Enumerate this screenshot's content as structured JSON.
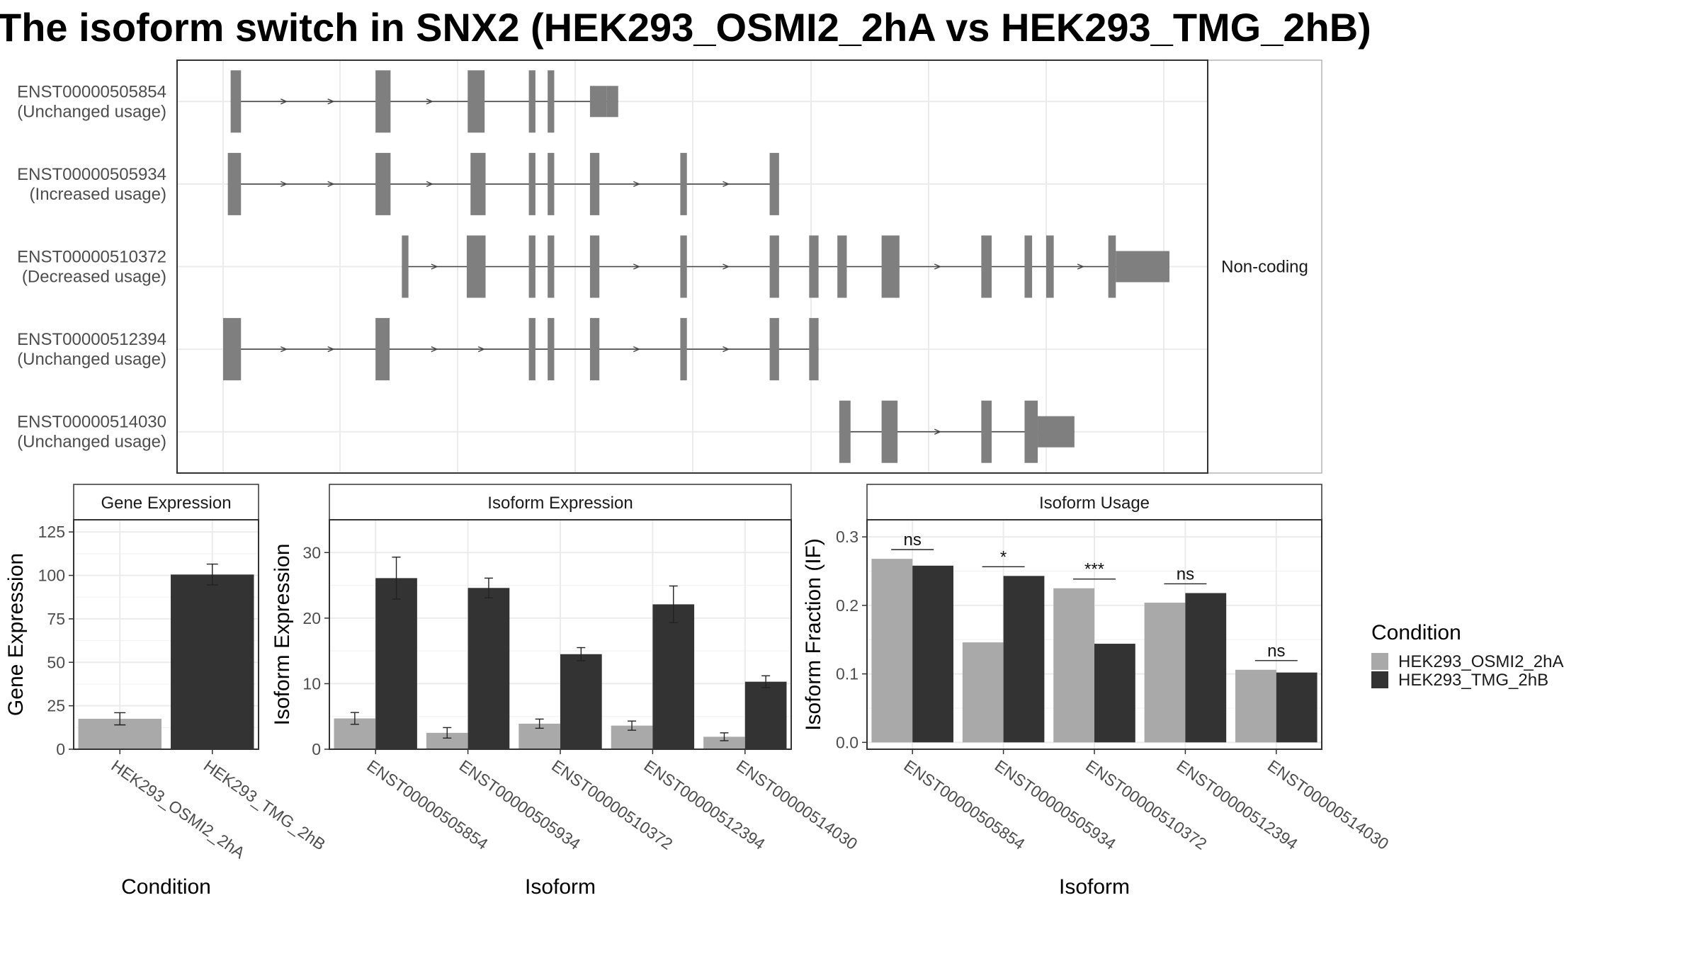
{
  "title": "The isoform switch in SNX2 (HEK293_OSMI2_2hA vs HEK293_TMG_2hB)",
  "colors": {
    "exon": "#7f7f7f",
    "cond_a": "#a9a9a9",
    "cond_b": "#333333",
    "grid": "#ebebeb",
    "panel_border": "#333333",
    "strip_bg": "#ffffff",
    "text": "#222222"
  },
  "structure": {
    "coordinate_range": [
      0,
      1000
    ],
    "tracks": [
      {
        "id": "ENST00000505854",
        "status": "(Unchanged usage)",
        "coding": true,
        "exons": [
          [
            8,
            19
          ],
          [
            162,
            178
          ],
          [
            260,
            278
          ],
          [
            325,
            332
          ],
          [
            345,
            352
          ],
          [
            390,
            408,
            "utr"
          ],
          [
            408,
            420,
            "utr"
          ]
        ],
        "arrows": [
          65,
          115,
          220
        ]
      },
      {
        "id": "ENST00000505934",
        "status": "(Increased usage)",
        "coding": true,
        "exons": [
          [
            5,
            19
          ],
          [
            162,
            178
          ],
          [
            263,
            279
          ],
          [
            325,
            332
          ],
          [
            345,
            352
          ],
          [
            390,
            400
          ],
          [
            486,
            493
          ],
          [
            581,
            591
          ]
        ],
        "arrows": [
          65,
          115,
          220,
          440,
          535
        ]
      },
      {
        "id": "ENST00000510372",
        "status": "(Decreased usage)",
        "coding": true,
        "exons": [
          [
            190,
            197
          ],
          [
            259,
            279
          ],
          [
            325,
            332
          ],
          [
            345,
            352
          ],
          [
            390,
            400
          ],
          [
            486,
            493
          ],
          [
            581,
            591
          ],
          [
            623,
            633
          ],
          [
            653,
            663
          ],
          [
            700,
            719
          ],
          [
            806,
            817
          ],
          [
            852,
            860
          ],
          [
            875,
            883
          ],
          [
            941,
            949
          ],
          [
            949,
            1006,
            "utr"
          ]
        ],
        "arrows": [
          225,
          440,
          535,
          760,
          912
        ],
        "side_label": "Non-coding"
      },
      {
        "id": "ENST00000512394",
        "status": "(Unchanged usage)",
        "coding": true,
        "exons": [
          [
            0,
            19
          ],
          [
            162,
            177
          ],
          [
            325,
            332
          ],
          [
            345,
            352
          ],
          [
            390,
            400
          ],
          [
            486,
            493
          ],
          [
            581,
            591
          ],
          [
            623,
            633
          ]
        ],
        "arrows": [
          65,
          115,
          225,
          275,
          440,
          535
        ]
      },
      {
        "id": "ENST00000514030",
        "status": "(Unchanged usage)",
        "coding": true,
        "exons": [
          [
            655,
            667
          ],
          [
            700,
            717
          ],
          [
            806,
            817
          ],
          [
            852,
            866
          ],
          [
            866,
            905,
            "utr"
          ]
        ],
        "arrows": [
          760
        ]
      }
    ]
  },
  "chart_data": [
    {
      "type": "bar",
      "title": "Gene Expression",
      "xlabel": "Condition",
      "ylabel": "Gene Expression",
      "ylim": [
        0,
        132
      ],
      "yticks": [
        0,
        25,
        50,
        75,
        100,
        125
      ],
      "categories": [
        "HEK293_OSMI2_2hA",
        "HEK293_TMG_2hB"
      ],
      "values": [
        17.5,
        100.5
      ],
      "errors": [
        3.5,
        6
      ],
      "series_colors": [
        "#a9a9a9",
        "#333333"
      ]
    },
    {
      "type": "bar",
      "title": "Isoform Expression",
      "xlabel": "Isoform",
      "ylabel": "Isoform Expression",
      "ylim": [
        0,
        35
      ],
      "yticks": [
        0,
        10,
        20,
        30
      ],
      "categories": [
        "ENST00000505854",
        "ENST00000505934",
        "ENST00000510372",
        "ENST00000512394",
        "ENST00000514030"
      ],
      "series": [
        {
          "name": "HEK293_OSMI2_2hA",
          "values": [
            4.7,
            2.5,
            3.9,
            3.6,
            1.9
          ],
          "errors": [
            0.9,
            0.8,
            0.7,
            0.7,
            0.6
          ]
        },
        {
          "name": "HEK293_TMG_2hB",
          "values": [
            26.1,
            24.6,
            14.5,
            22.1,
            10.3
          ],
          "errors": [
            3.2,
            1.5,
            1.0,
            2.8,
            0.9
          ]
        }
      ]
    },
    {
      "type": "bar",
      "title": "Isoform Usage",
      "xlabel": "Isoform",
      "ylabel": "Isoform Fraction (IF)",
      "ylim": [
        -0.01,
        0.325
      ],
      "yticks": [
        0.0,
        0.1,
        0.2,
        0.3
      ],
      "ytick_labels": [
        "0.0",
        "0.1",
        "0.2",
        "0.3"
      ],
      "categories": [
        "ENST00000505854",
        "ENST00000505934",
        "ENST00000510372",
        "ENST00000512394",
        "ENST00000514030"
      ],
      "series": [
        {
          "name": "HEK293_OSMI2_2hA",
          "values": [
            0.268,
            0.146,
            0.225,
            0.204,
            0.106
          ]
        },
        {
          "name": "HEK293_TMG_2hB",
          "values": [
            0.258,
            0.243,
            0.144,
            0.218,
            0.102
          ]
        }
      ],
      "significance": [
        "ns",
        "*",
        "***",
        "ns",
        "ns"
      ]
    }
  ],
  "legend": {
    "title": "Condition",
    "entries": [
      "HEK293_OSMI2_2hA",
      "HEK293_TMG_2hB"
    ]
  }
}
